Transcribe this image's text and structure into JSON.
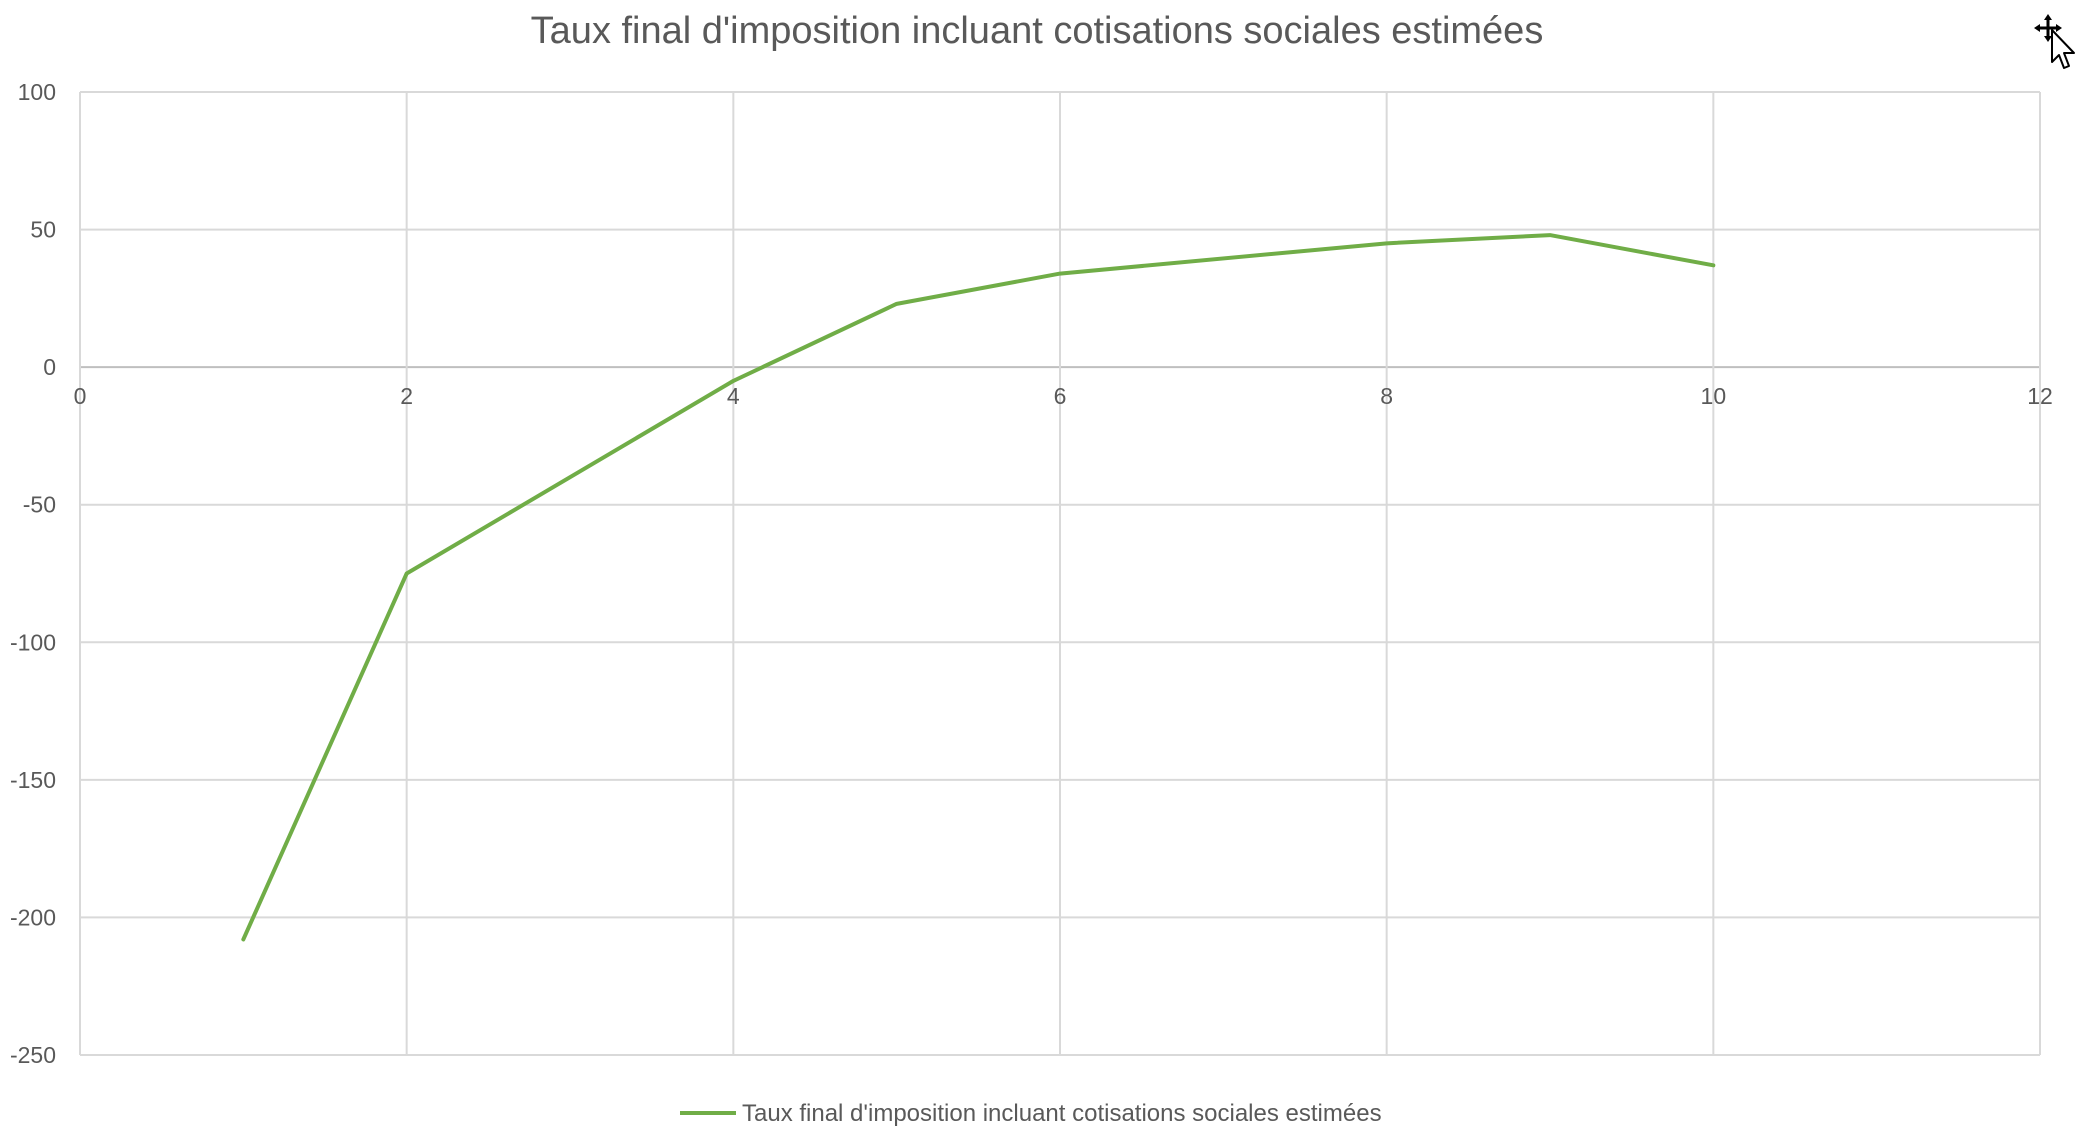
{
  "chart_data": {
    "type": "scatter",
    "mode": "lines",
    "title": "Taux final d'imposition incluant cotisations sociales estimées",
    "xlabel": "",
    "ylabel": "",
    "xlim": [
      0,
      12
    ],
    "ylim": [
      -250,
      100
    ],
    "x_ticks": [
      0,
      2,
      4,
      6,
      8,
      10,
      12
    ],
    "y_ticks": [
      100,
      50,
      0,
      -50,
      -100,
      -150,
      -200,
      -250
    ],
    "x_tick_labels": [
      "0",
      "2",
      "4",
      "6",
      "8",
      "10",
      "12"
    ],
    "y_tick_labels": [
      "100",
      "50",
      "0",
      "-50",
      "-100",
      "-150",
      "-200",
      "-250"
    ],
    "grid": true,
    "legend_position": "bottom",
    "series": [
      {
        "name": "Taux final d'imposition incluant cotisations sociales estimées",
        "color": "#70ad47",
        "x": [
          1,
          2,
          4,
          5,
          6,
          8,
          9,
          10
        ],
        "y": [
          -208,
          -75,
          -5,
          23,
          34,
          45,
          48,
          37
        ]
      }
    ]
  },
  "icons": {
    "cursor": "move-cursor-icon"
  }
}
